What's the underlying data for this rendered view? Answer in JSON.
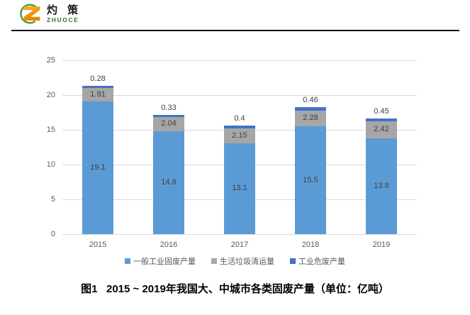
{
  "header": {
    "brand_cn": "灼 策",
    "brand_en": "ZHUOCE"
  },
  "chart_data": {
    "type": "bar",
    "stacked": true,
    "categories": [
      "2015",
      "2016",
      "2017",
      "2018",
      "2019"
    ],
    "series": [
      {
        "name": "一般工业固废产量",
        "color": "#5b9bd5",
        "label_placement": "inside",
        "values": [
          19.1,
          14.8,
          13.1,
          15.5,
          13.8
        ]
      },
      {
        "name": "生活垃圾清运量",
        "color": "#a6a6a6",
        "label_placement": "inside",
        "values": [
          1.91,
          2.04,
          2.15,
          2.28,
          2.42
        ]
      },
      {
        "name": "工业危废产量",
        "color": "#4472c4",
        "label_placement": "above",
        "values": [
          0.28,
          0.33,
          0.4,
          0.46,
          0.45
        ]
      }
    ],
    "ylim": [
      0,
      25
    ],
    "yticks": [
      0,
      5,
      10,
      15,
      20,
      25
    ],
    "grid": true,
    "legend_position": "bottom",
    "label_color": "#404040",
    "axis_color": "#595959",
    "gridline_color": "#d9d9d9"
  },
  "caption": "图1   2015 ~ 2019年我国大、中城市各类固废产量（单位：亿吨）"
}
